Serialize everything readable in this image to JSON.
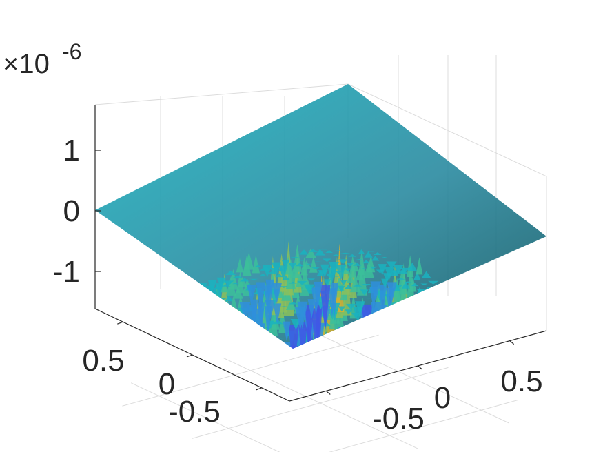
{
  "chart_data": {
    "type": "surface",
    "title": "",
    "xlabel": "",
    "ylabel": "",
    "zlabel": "",
    "z_multiplier": "×10",
    "z_multiplier_exponent": "-6",
    "x_ticks": [
      {
        "value": -0.5,
        "label": "-0.5"
      },
      {
        "value": 0,
        "label": "0"
      },
      {
        "value": 0.5,
        "label": "0.5"
      }
    ],
    "y_ticks": [
      {
        "value": -0.5,
        "label": "-0.5"
      },
      {
        "value": 0,
        "label": "0"
      },
      {
        "value": 0.5,
        "label": "0.5"
      }
    ],
    "z_ticks": [
      {
        "value": -1,
        "label": "-1"
      },
      {
        "value": 0,
        "label": "0"
      },
      {
        "value": 1,
        "label": "1"
      }
    ],
    "xlim": [
      -0.7,
      0.7
    ],
    "ylim": [
      -0.7,
      0.7
    ],
    "zlim": [
      -1.6,
      1.8
    ],
    "z_range_of_surface": [
      -1.5,
      1.8
    ],
    "description_of_surface": "highly oscillatory surface over a diamond-shaped domain",
    "grid": true,
    "colormap": [
      "#3e26a8",
      "#3f57e6",
      "#2f8fdc",
      "#1ab3c0",
      "#3cbf9a",
      "#8cbf5a",
      "#d7b12e",
      "#f9c42f"
    ],
    "axis_color": "#262626",
    "grid_color": "#dcdcdc"
  }
}
